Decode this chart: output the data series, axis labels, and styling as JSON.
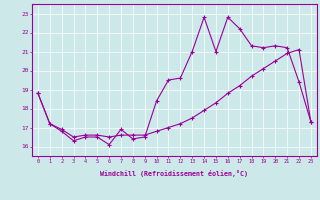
{
  "xlabel": "Windchill (Refroidissement éolien,°C)",
  "bg_color": "#cce8e8",
  "line_color": "#990099",
  "xlim": [
    -0.5,
    23.5
  ],
  "ylim": [
    15.5,
    23.5
  ],
  "yticks": [
    16,
    17,
    18,
    19,
    20,
    21,
    22,
    23
  ],
  "xticks": [
    0,
    1,
    2,
    3,
    4,
    5,
    6,
    7,
    8,
    9,
    10,
    11,
    12,
    13,
    14,
    15,
    16,
    17,
    18,
    19,
    20,
    21,
    22,
    23
  ],
  "series1_x": [
    0,
    1,
    2,
    3,
    4,
    5,
    6,
    7,
    8,
    9,
    10,
    11,
    12,
    13,
    14,
    15,
    16,
    17,
    18,
    19,
    20,
    21,
    22,
    23
  ],
  "series1_y": [
    18.8,
    17.2,
    16.8,
    16.3,
    16.5,
    16.5,
    16.1,
    16.9,
    16.4,
    16.5,
    18.4,
    19.5,
    19.6,
    21.0,
    22.8,
    21.0,
    22.8,
    22.2,
    21.3,
    21.2,
    21.3,
    21.2,
    19.4,
    17.3
  ],
  "series2_x": [
    0,
    1,
    2,
    3,
    4,
    5,
    6,
    7,
    8,
    9,
    10,
    11,
    12,
    13,
    14,
    15,
    16,
    17,
    18,
    19,
    20,
    21,
    22,
    23
  ],
  "series2_y": [
    18.8,
    17.2,
    16.9,
    16.5,
    16.6,
    16.6,
    16.5,
    16.6,
    16.6,
    16.6,
    16.8,
    17.0,
    17.2,
    17.5,
    17.9,
    18.3,
    18.8,
    19.2,
    19.7,
    20.1,
    20.5,
    20.9,
    21.1,
    17.3
  ]
}
